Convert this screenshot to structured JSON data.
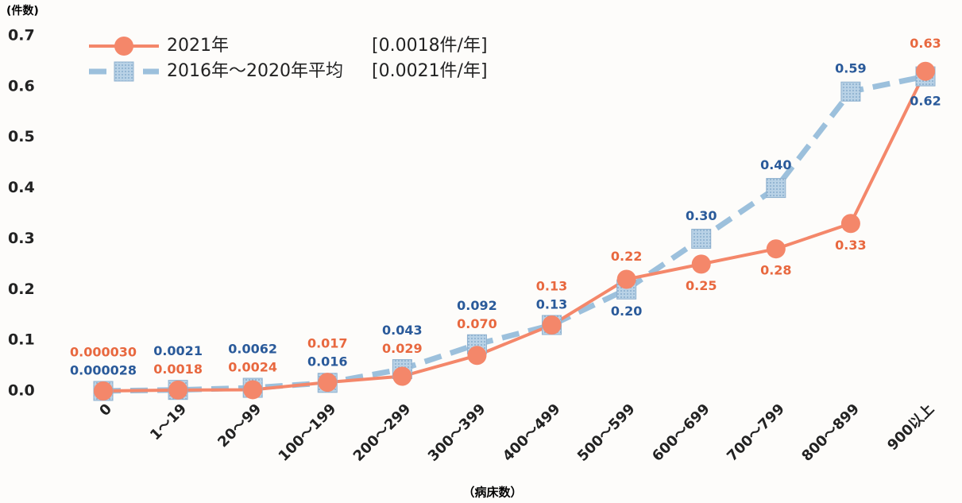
{
  "chart_data": {
    "type": "line",
    "y_label": "(件数)",
    "x_label": "（病床数）",
    "categories": [
      "0",
      "1～19",
      "20～99",
      "100～199",
      "200～299",
      "300～399",
      "400～499",
      "500～599",
      "600～699",
      "700～799",
      "800～899",
      "900以上"
    ],
    "series": [
      {
        "name": "2021年",
        "legend_note": "[0.0018件/年]",
        "color": "#f4876a",
        "label_color": "#e8683f",
        "marker": "circle",
        "values": [
          3e-05,
          0.0018,
          0.0024,
          0.017,
          0.029,
          0.07,
          0.13,
          0.22,
          0.25,
          0.28,
          0.33,
          0.63
        ],
        "value_labels": [
          "0.000030",
          "0.0018",
          "0.0024",
          "0.017",
          "0.029",
          "0.070",
          "0.13",
          "0.22",
          "0.25",
          "0.28",
          "0.33",
          "0.63"
        ]
      },
      {
        "name": "2016年～2020年平均",
        "legend_note": "[0.0021件/年]",
        "color": "#9cc0dc",
        "label_color": "#2a5a9a",
        "marker": "square",
        "dashed": true,
        "values": [
          2.8e-05,
          0.0021,
          0.0062,
          0.016,
          0.043,
          0.092,
          0.13,
          0.2,
          0.3,
          0.4,
          0.59,
          0.62
        ],
        "value_labels": [
          "0.000028",
          "0.0021",
          "0.0062",
          "0.016",
          "0.043",
          "0.092",
          "0.13",
          "0.20",
          "0.30",
          "0.40",
          "0.59",
          "0.62"
        ]
      }
    ],
    "ylim": [
      0,
      0.7
    ],
    "yticks": [
      {
        "value": 0,
        "label": "0.0"
      },
      0.1,
      0.2,
      0.3,
      0.4,
      0.5,
      0.6,
      0.7
    ],
    "grid": false
  }
}
